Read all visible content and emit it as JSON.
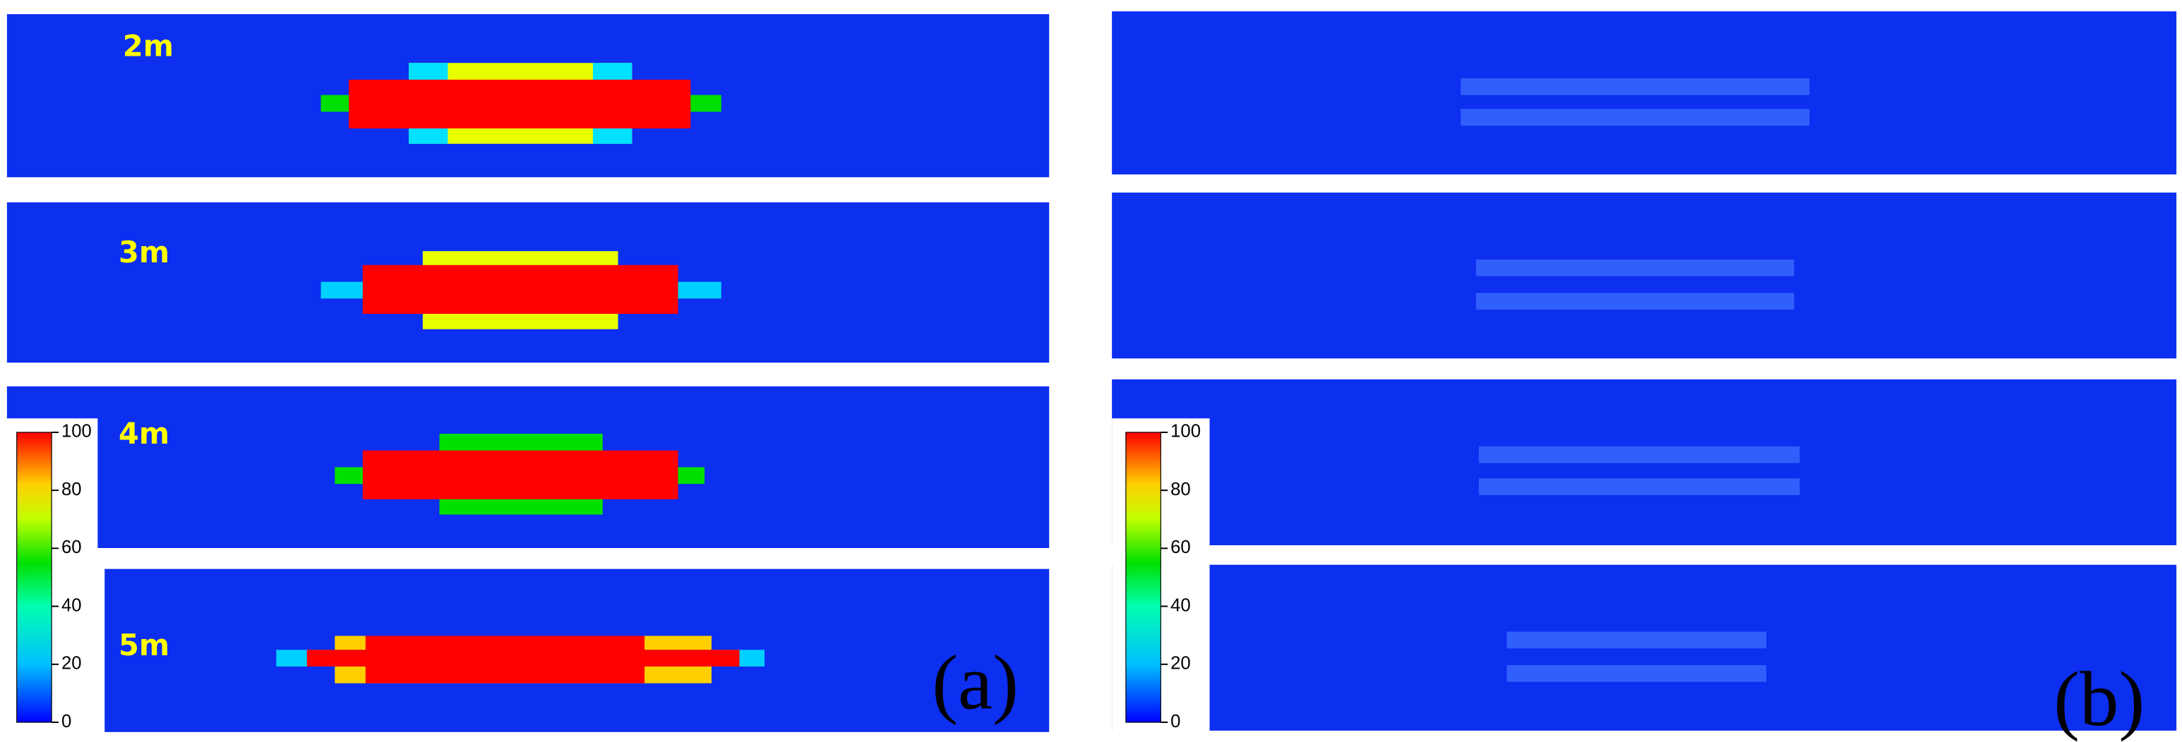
{
  "left_panels": [
    {
      "label": "2m"
    },
    {
      "label": "3m"
    },
    {
      "label": "4m"
    },
    {
      "label": "5m"
    }
  ],
  "panel_labels": [
    "(a)",
    "(b)"
  ],
  "colorbars": [
    {
      "lim": [
        0,
        100
      ],
      "ticks": [
        0,
        20,
        40,
        60,
        80,
        100
      ]
    },
    {
      "lim": [
        0,
        100
      ],
      "ticks": [
        0,
        20,
        40,
        60,
        80,
        100
      ]
    }
  ]
}
